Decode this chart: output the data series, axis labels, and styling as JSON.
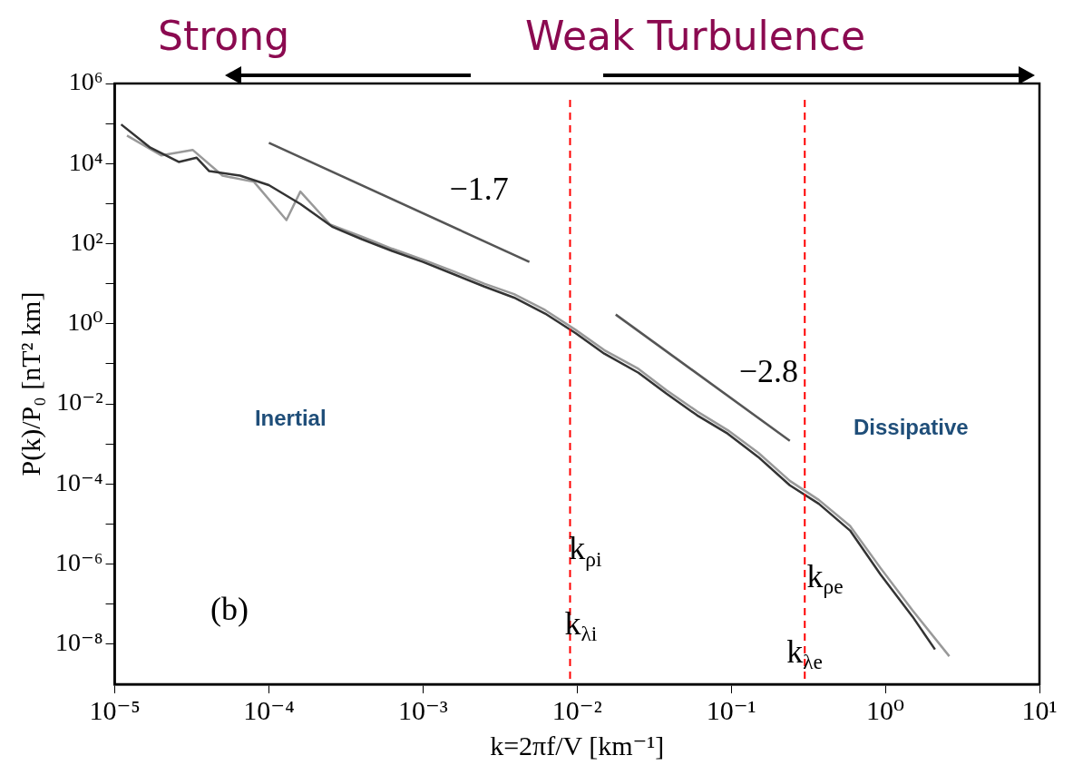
{
  "chart_data": {
    "type": "line",
    "xlabel": "k=2πf/V [km⁻¹]",
    "ylabel": "P(k)/P₀ [nT² km]",
    "log": "xy",
    "grid": false,
    "legend": false,
    "marker": "none",
    "line_style": "solid",
    "xlim": [
      1e-05,
      10
    ],
    "ylim": [
      1e-09,
      1000000.0
    ],
    "xticks": [
      {
        "value": 1e-05,
        "label": "10⁻⁵"
      },
      {
        "value": 0.0001,
        "label": "10⁻⁴"
      },
      {
        "value": 0.001,
        "label": "10⁻³"
      },
      {
        "value": 0.01,
        "label": "10⁻²"
      },
      {
        "value": 0.1,
        "label": "10⁻¹"
      },
      {
        "value": 1,
        "label": "10⁰"
      },
      {
        "value": 10,
        "label": "10¹"
      }
    ],
    "yticks": [
      {
        "value": 1e-08,
        "label": "10⁻⁸"
      },
      {
        "value": 1e-07,
        "label": null
      },
      {
        "value": 1e-06,
        "label": "10⁻⁶"
      },
      {
        "value": 1e-05,
        "label": null
      },
      {
        "value": 0.0001,
        "label": "10⁻⁴"
      },
      {
        "value": 0.001,
        "label": null
      },
      {
        "value": 0.01,
        "label": "10⁻²"
      },
      {
        "value": 0.1,
        "label": null
      },
      {
        "value": 1,
        "label": "10⁰"
      },
      {
        "value": 10,
        "label": null
      },
      {
        "value": 100,
        "label": "10²"
      },
      {
        "value": 1000,
        "label": null
      },
      {
        "value": 10000.0,
        "label": "10⁴"
      },
      {
        "value": 100000.0,
        "label": null
      },
      {
        "value": 1000000.0,
        "label": "10⁶"
      }
    ],
    "series": [
      {
        "color": "#333333",
        "x": [
          1.1e-05,
          1.7e-05,
          2.6e-05,
          3.4e-05,
          4.1e-05,
          6.5e-05,
          0.0001,
          0.00016,
          0.00026,
          0.0004,
          0.00063,
          0.001,
          0.0016,
          0.0025,
          0.0039,
          0.0062,
          0.0098,
          0.015,
          0.025,
          0.038,
          0.06,
          0.095,
          0.15,
          0.24,
          0.37,
          0.59,
          0.93,
          1.5,
          2.1
        ],
        "values": [
          95000.0,
          25000.0,
          11000.0,
          14000.0,
          6500.0,
          5000.0,
          2900.0,
          980,
          260,
          130,
          66,
          35,
          17,
          8.5,
          4.5,
          1.8,
          0.58,
          0.18,
          0.06,
          0.018,
          0.0052,
          0.0018,
          0.00047,
          9.3e-05,
          3.2e-05,
          6.9e-06,
          5.5e-07,
          4.9e-08,
          7.4e-09
        ]
      },
      {
        "color": "#999999",
        "x": [
          1.2e-05,
          2e-05,
          3.2e-05,
          5e-05,
          8e-05,
          0.00013,
          0.00016,
          0.00025,
          0.0004,
          0.00063,
          0.001,
          0.0016,
          0.0025,
          0.0039,
          0.0062,
          0.0098,
          0.015,
          0.025,
          0.038,
          0.06,
          0.095,
          0.15,
          0.24,
          0.37,
          0.59,
          0.93,
          1.5,
          2.6
        ],
        "values": [
          50000.0,
          16000.0,
          22000.0,
          5000.0,
          3500.0,
          390,
          2000.0,
          300,
          150,
          75,
          40,
          20,
          10,
          5.5,
          2.2,
          0.7,
          0.22,
          0.075,
          0.022,
          0.0065,
          0.0022,
          0.0006,
          0.00012,
          4e-05,
          9e-06,
          8e-07,
          7e-08,
          5e-09
        ]
      },
      {
        "color": "#555555",
        "x": [
          0.0001,
          0.0049
        ],
        "values": [
          33000.0,
          35
        ]
      },
      {
        "color": "#555555",
        "x": [
          0.0178,
          0.24
        ],
        "values": [
          1.7,
          0.0012
        ]
      }
    ],
    "ref_lines": [
      {
        "axis": "x",
        "value": 0.009,
        "color": "#ff0000",
        "line_style": "dashed"
      },
      {
        "axis": "x",
        "value": 0.3,
        "color": "#ff0000",
        "line_style": "dashed"
      }
    ],
    "annotations": [
      "Strong",
      "Weak Turbulence",
      "−1.7",
      "−2.8",
      "Inertial",
      "Dissipative",
      "(b)",
      "k$_{ρi}$",
      "k$_{λi}$",
      "k$_{ρe}$",
      "k$_{λe}$"
    ]
  }
}
